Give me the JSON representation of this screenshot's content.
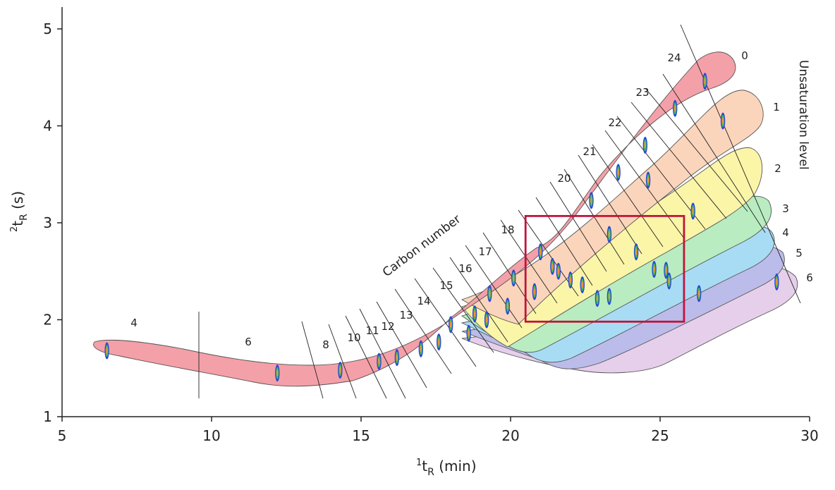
{
  "chart_data": {
    "type": "scatter",
    "xlabel": "(min)",
    "xlabel_sup": "1",
    "xlabel_sub": "t",
    "xlabel_subsub": "R",
    "ylabel_sup": "2",
    "ylabel_main": "t",
    "ylabel_sub": "R",
    "ylabel_unit": "(s)",
    "xlim": [
      5,
      30
    ],
    "ylim": [
      1,
      5.3
    ],
    "x_ticks": [
      "5",
      "10",
      "15",
      "20",
      "25",
      "30"
    ],
    "y_ticks": [
      "1",
      "2",
      "3",
      "4",
      "5"
    ],
    "grid": false,
    "carbon_number_title": "Carbon number",
    "unsaturation_title": "Unsaturation level",
    "carbon_numbers": [
      "4",
      "6",
      "8",
      "10",
      "11",
      "12",
      "13",
      "14",
      "15",
      "16",
      "17",
      "18",
      "20",
      "21",
      "22",
      "23",
      "24"
    ],
    "unsaturation_levels": [
      "0",
      "1",
      "2",
      "3",
      "4",
      "5",
      "6"
    ],
    "band_colors": [
      "#f4a0a8",
      "#fbd5bb",
      "#fbf5a8",
      "#b9ecc0",
      "#a8dcf4",
      "#bcbcea",
      "#e6cfea"
    ],
    "highlight_color": "#c0143c",
    "highlight_box": {
      "x": [
        20.5,
        25.8
      ],
      "y": [
        1.98,
        3.07
      ]
    },
    "points": [
      {
        "x": 6.5,
        "y": 1.68
      },
      {
        "x": 12.2,
        "y": 1.45
      },
      {
        "x": 14.3,
        "y": 1.48
      },
      {
        "x": 15.6,
        "y": 1.57
      },
      {
        "x": 16.2,
        "y": 1.61
      },
      {
        "x": 17.0,
        "y": 1.7
      },
      {
        "x": 17.6,
        "y": 1.77
      },
      {
        "x": 18.0,
        "y": 1.95
      },
      {
        "x": 18.6,
        "y": 1.86
      },
      {
        "x": 18.8,
        "y": 2.06
      },
      {
        "x": 19.2,
        "y": 2.0
      },
      {
        "x": 19.3,
        "y": 2.27
      },
      {
        "x": 19.9,
        "y": 2.14
      },
      {
        "x": 20.1,
        "y": 2.43
      },
      {
        "x": 20.8,
        "y": 2.29
      },
      {
        "x": 21.0,
        "y": 2.7
      },
      {
        "x": 21.4,
        "y": 2.55
      },
      {
        "x": 21.6,
        "y": 2.5
      },
      {
        "x": 22.0,
        "y": 2.41
      },
      {
        "x": 22.4,
        "y": 2.36
      },
      {
        "x": 22.7,
        "y": 3.23
      },
      {
        "x": 22.9,
        "y": 2.22
      },
      {
        "x": 23.3,
        "y": 2.24
      },
      {
        "x": 23.3,
        "y": 2.88
      },
      {
        "x": 23.6,
        "y": 3.52
      },
      {
        "x": 24.2,
        "y": 2.7
      },
      {
        "x": 24.5,
        "y": 3.8
      },
      {
        "x": 24.6,
        "y": 3.44
      },
      {
        "x": 24.8,
        "y": 2.52
      },
      {
        "x": 25.2,
        "y": 2.51
      },
      {
        "x": 25.3,
        "y": 2.4
      },
      {
        "x": 25.5,
        "y": 4.18
      },
      {
        "x": 26.1,
        "y": 3.12
      },
      {
        "x": 26.3,
        "y": 2.27
      },
      {
        "x": 26.5,
        "y": 4.46
      },
      {
        "x": 27.1,
        "y": 4.05
      },
      {
        "x": 28.9,
        "y": 2.39
      }
    ]
  }
}
